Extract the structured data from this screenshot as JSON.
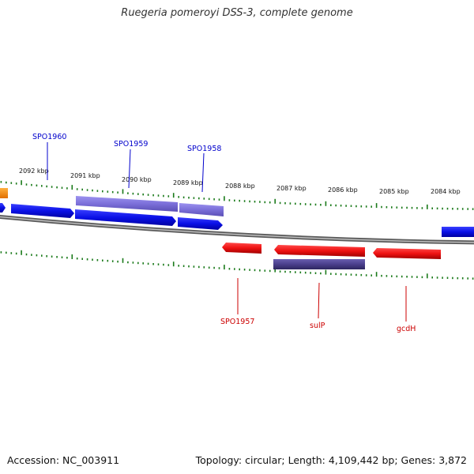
{
  "title": "Ruegeria pomeroyi DSS-3, complete genome",
  "footer": {
    "accession": "Accession: NC_003911",
    "stats": "Topology: circular; Length: 4,109,442 bp; Genes: 3,872"
  },
  "scale": {
    "labels": [
      "2092 kbp",
      "2091 kbp",
      "2090 kbp",
      "2089 kbp",
      "2088 kbp",
      "2087 kbp",
      "2086 kbp",
      "2085 kbp",
      "2084 kbp"
    ]
  },
  "gene_labels": {
    "top": [
      "SPO1960",
      "SPO1959",
      "SPO1958"
    ],
    "bottom": [
      "SPO1957",
      "sulP",
      "gcdH"
    ]
  },
  "colors": {
    "forward_cds": "#0a10e6",
    "forward_cds_dark": "#0000a0",
    "reverse_cds": "#ee1111",
    "reverse_cds_dark": "#a00000",
    "forward_feature": "#7b6fd9",
    "reverse_feature": "#4a3f8c",
    "other": "#ff8c00",
    "backbone": "#8a8a8a",
    "ticks": "#1a7a1a",
    "label_forward": "#0000cc",
    "label_reverse": "#cc0000"
  }
}
